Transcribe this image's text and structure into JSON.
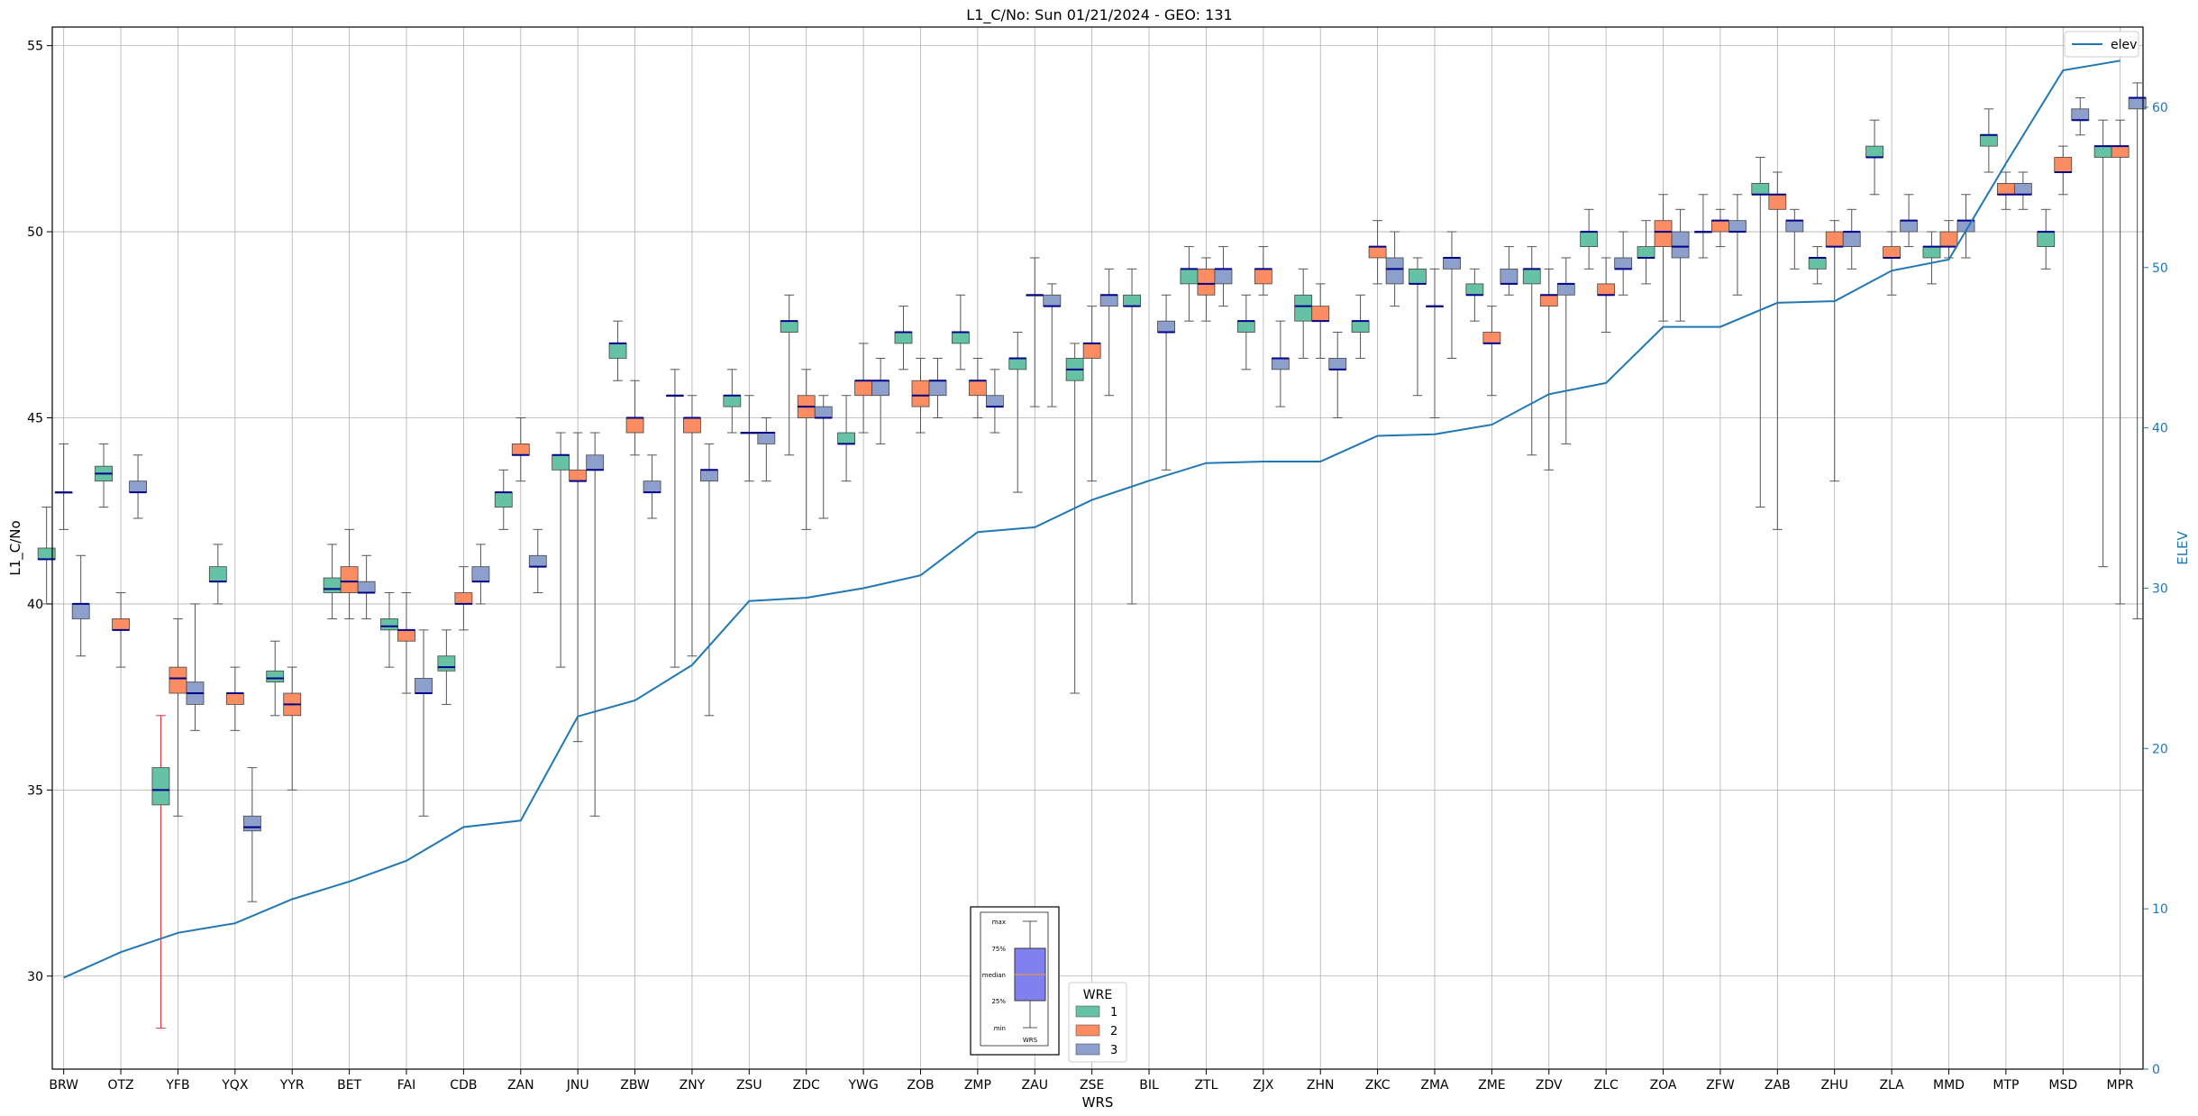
{
  "chart_data": {
    "type": "box",
    "title": "L1_C/No: Sun 01/21/2024 - GEO: 131",
    "xlabel": "WRS",
    "ylabel": "L1_C/No",
    "y2label": "ELEV",
    "ylim": [
      27.5,
      55.5
    ],
    "y2lim": [
      0,
      65
    ],
    "yticks": [
      30,
      35,
      40,
      45,
      50,
      55
    ],
    "y2ticks": [
      0,
      10,
      20,
      30,
      40,
      50,
      60
    ],
    "grid": true,
    "categories": [
      "BRW",
      "OTZ",
      "YFB",
      "YQX",
      "YYR",
      "BET",
      "FAI",
      "CDB",
      "ZAN",
      "JNU",
      "ZBW",
      "ZNY",
      "ZSU",
      "ZDC",
      "YWG",
      "ZOB",
      "ZMP",
      "ZAU",
      "ZSE",
      "BIL",
      "ZTL",
      "ZJX",
      "ZHN",
      "ZKC",
      "ZMA",
      "ZME",
      "ZDV",
      "ZLC",
      "ZOA",
      "ZFW",
      "ZAB",
      "ZHU",
      "ZLA",
      "MMD",
      "MTP",
      "MSD",
      "MPR"
    ],
    "series_colors": {
      "1": "#66c2a5",
      "2": "#fc8d62",
      "3": "#8da0cb"
    },
    "elev_color": "#1f77b4",
    "median_color": "#00008b",
    "series": [
      {
        "name": "1",
        "boxes": [
          [
            40.0,
            41.2,
            41.2,
            41.5,
            42.6
          ],
          [
            42.6,
            43.3,
            43.5,
            43.7,
            44.3
          ],
          [
            28.6,
            34.6,
            35.0,
            35.6,
            37.0
          ],
          [
            40.0,
            40.6,
            40.6,
            41.0,
            41.6
          ],
          [
            37.0,
            37.9,
            38.0,
            38.2,
            39.0
          ],
          [
            39.6,
            40.3,
            40.4,
            40.7,
            41.6
          ],
          [
            38.3,
            39.3,
            39.4,
            39.6,
            40.3
          ],
          [
            37.3,
            38.2,
            38.3,
            38.6,
            39.3
          ],
          [
            42.0,
            42.6,
            43.0,
            43.0,
            43.6
          ],
          [
            38.3,
            43.6,
            44.0,
            44.0,
            44.6
          ],
          [
            46.0,
            46.6,
            47.0,
            47.0,
            47.6
          ],
          [
            38.3,
            45.6,
            45.6,
            45.6,
            46.3
          ],
          [
            44.6,
            45.3,
            45.6,
            45.6,
            46.3
          ],
          [
            44.0,
            47.3,
            47.6,
            47.6,
            48.3
          ],
          [
            43.3,
            44.3,
            44.3,
            44.6,
            45.6
          ],
          [
            46.3,
            47.0,
            47.3,
            47.3,
            48.0
          ],
          [
            46.3,
            47.0,
            47.3,
            47.3,
            48.3
          ],
          [
            43.0,
            46.3,
            46.6,
            46.6,
            47.3
          ],
          [
            37.6,
            46.0,
            46.3,
            46.6,
            47.0
          ],
          [
            40.0,
            48.0,
            48.0,
            48.3,
            49.0
          ],
          [
            47.6,
            48.6,
            49.0,
            49.0,
            49.6
          ],
          [
            46.3,
            47.3,
            47.6,
            47.6,
            48.3
          ],
          [
            46.6,
            47.6,
            48.0,
            48.3,
            49.0
          ],
          [
            46.6,
            47.3,
            47.6,
            47.6,
            48.3
          ],
          [
            45.6,
            48.6,
            48.6,
            49.0,
            49.3
          ],
          [
            47.6,
            48.3,
            48.3,
            48.6,
            49.0
          ],
          [
            44.0,
            48.6,
            49.0,
            49.0,
            49.6
          ],
          [
            49.0,
            49.6,
            50.0,
            50.0,
            50.6
          ],
          [
            48.6,
            49.3,
            49.3,
            49.6,
            50.3
          ],
          [
            49.3,
            50.0,
            50.0,
            50.0,
            51.0
          ],
          [
            42.6,
            51.0,
            51.0,
            51.3,
            52.0
          ],
          [
            48.6,
            49.0,
            49.3,
            49.3,
            49.6
          ],
          [
            51.0,
            52.0,
            52.0,
            52.3,
            53.0
          ],
          [
            48.6,
            49.3,
            49.6,
            49.6,
            50.0
          ],
          [
            51.6,
            52.3,
            52.6,
            52.6,
            53.3
          ],
          [
            49.0,
            49.6,
            50.0,
            50.0,
            50.6
          ],
          [
            41.0,
            52.0,
            52.3,
            52.3,
            53.0
          ]
        ]
      },
      {
        "name": "2",
        "boxes": [
          [
            42.0,
            43.0,
            43.0,
            43.0,
            44.3
          ],
          [
            38.3,
            39.3,
            39.3,
            39.6,
            40.3
          ],
          [
            34.3,
            37.6,
            38.0,
            38.3,
            39.6
          ],
          [
            36.6,
            37.3,
            37.6,
            37.6,
            38.3
          ],
          [
            35.0,
            37.0,
            37.3,
            37.6,
            38.3
          ],
          [
            39.6,
            40.3,
            40.6,
            41.0,
            42.0
          ],
          [
            37.6,
            39.0,
            39.3,
            39.3,
            40.3
          ],
          [
            39.3,
            40.0,
            40.0,
            40.3,
            41.0
          ],
          [
            43.3,
            44.0,
            44.0,
            44.3,
            45.0
          ],
          [
            36.3,
            43.3,
            43.3,
            43.6,
            44.6
          ],
          [
            44.0,
            44.6,
            45.0,
            45.0,
            46.0
          ],
          [
            38.6,
            44.6,
            45.0,
            45.0,
            45.6
          ],
          [
            43.3,
            44.6,
            44.6,
            44.6,
            45.6
          ],
          [
            42.0,
            45.0,
            45.3,
            45.6,
            46.3
          ],
          [
            44.6,
            45.6,
            46.0,
            46.0,
            47.0
          ],
          [
            44.6,
            45.3,
            45.6,
            46.0,
            46.6
          ],
          [
            45.0,
            45.6,
            46.0,
            46.0,
            46.6
          ],
          [
            45.3,
            48.3,
            48.3,
            48.3,
            49.3
          ],
          [
            43.3,
            46.6,
            47.0,
            47.0,
            48.0
          ],
          [
            null,
            null,
            null,
            null,
            null
          ],
          [
            47.6,
            48.3,
            48.6,
            49.0,
            49.3
          ],
          [
            48.3,
            48.6,
            49.0,
            49.0,
            49.6
          ],
          [
            46.6,
            47.6,
            47.6,
            48.0,
            48.6
          ],
          [
            48.6,
            49.3,
            49.6,
            49.6,
            50.3
          ],
          [
            45.0,
            48.0,
            48.0,
            48.0,
            49.0
          ],
          [
            45.6,
            47.0,
            47.0,
            47.3,
            48.0
          ],
          [
            43.6,
            48.0,
            48.3,
            48.3,
            49.0
          ],
          [
            47.3,
            48.3,
            48.3,
            48.6,
            49.3
          ],
          [
            47.6,
            49.6,
            50.0,
            50.3,
            51.0
          ],
          [
            49.6,
            50.0,
            50.3,
            50.3,
            50.6
          ],
          [
            42.0,
            50.6,
            51.0,
            51.0,
            51.6
          ],
          [
            43.3,
            49.6,
            49.6,
            50.0,
            50.3
          ],
          [
            48.3,
            49.3,
            49.3,
            49.6,
            50.0
          ],
          [
            49.3,
            49.6,
            49.6,
            50.0,
            50.3
          ],
          [
            50.6,
            51.0,
            51.0,
            51.3,
            51.6
          ],
          [
            51.0,
            51.6,
            51.6,
            52.0,
            52.3
          ],
          [
            40.0,
            52.0,
            52.3,
            52.3,
            53.0
          ]
        ]
      },
      {
        "name": "3",
        "boxes": [
          [
            38.6,
            39.6,
            40.0,
            40.0,
            41.3
          ],
          [
            42.3,
            43.0,
            43.0,
            43.3,
            44.0
          ],
          [
            36.6,
            37.3,
            37.6,
            37.9,
            40.0
          ],
          [
            32.0,
            33.9,
            34.0,
            34.3,
            35.6
          ],
          [
            null,
            null,
            null,
            null,
            null
          ],
          [
            39.6,
            40.3,
            40.3,
            40.6,
            41.3
          ],
          [
            34.3,
            37.6,
            37.6,
            38.0,
            39.3
          ],
          [
            40.0,
            40.6,
            40.6,
            41.0,
            41.6
          ],
          [
            40.3,
            41.0,
            41.0,
            41.3,
            42.0
          ],
          [
            34.3,
            43.6,
            43.6,
            44.0,
            44.6
          ],
          [
            42.3,
            43.0,
            43.0,
            43.3,
            44.0
          ],
          [
            37.0,
            43.3,
            43.6,
            43.6,
            44.3
          ],
          [
            43.3,
            44.3,
            44.6,
            44.6,
            45.0
          ],
          [
            42.3,
            45.0,
            45.0,
            45.3,
            45.6
          ],
          [
            44.3,
            45.6,
            46.0,
            46.0,
            46.6
          ],
          [
            45.0,
            45.6,
            46.0,
            46.0,
            46.6
          ],
          [
            44.6,
            45.3,
            45.3,
            45.6,
            46.3
          ],
          [
            45.3,
            48.0,
            48.0,
            48.3,
            48.6
          ],
          [
            45.6,
            48.0,
            48.3,
            48.3,
            49.0
          ],
          [
            43.6,
            47.3,
            47.3,
            47.6,
            48.3
          ],
          [
            48.0,
            48.6,
            49.0,
            49.0,
            49.6
          ],
          [
            45.3,
            46.3,
            46.6,
            46.6,
            47.6
          ],
          [
            45.0,
            46.3,
            46.3,
            46.6,
            47.3
          ],
          [
            48.0,
            48.6,
            49.0,
            49.3,
            50.0
          ],
          [
            46.6,
            49.0,
            49.3,
            49.3,
            50.0
          ],
          [
            48.3,
            48.6,
            48.6,
            49.0,
            49.6
          ],
          [
            44.3,
            48.3,
            48.6,
            48.6,
            49.3
          ],
          [
            48.3,
            49.0,
            49.0,
            49.3,
            50.0
          ],
          [
            47.6,
            49.3,
            49.6,
            50.0,
            50.6
          ],
          [
            48.3,
            50.0,
            50.0,
            50.3,
            51.0
          ],
          [
            49.0,
            50.0,
            50.3,
            50.3,
            50.6
          ],
          [
            49.0,
            49.6,
            50.0,
            50.0,
            50.6
          ],
          [
            49.6,
            50.0,
            50.3,
            50.3,
            51.0
          ],
          [
            49.3,
            50.0,
            50.3,
            50.3,
            51.0
          ],
          [
            50.6,
            51.0,
            51.0,
            51.3,
            51.6
          ],
          [
            52.6,
            53.0,
            53.0,
            53.3,
            53.6
          ],
          [
            39.6,
            53.3,
            53.6,
            53.6,
            54.0
          ]
        ]
      }
    ],
    "elev": {
      "name": "elev",
      "values": [
        5.7,
        7.3,
        8.5,
        9.1,
        10.6,
        11.7,
        13.0,
        15.1,
        15.5,
        22.0,
        23.0,
        25.2,
        29.2,
        29.4,
        30.0,
        30.8,
        33.5,
        33.8,
        35.5,
        36.7,
        37.8,
        37.9,
        37.9,
        39.5,
        39.6,
        40.2,
        42.1,
        42.8,
        46.3,
        46.3,
        47.8,
        47.9,
        49.8,
        50.5,
        56.5,
        62.3,
        62.9
      ]
    },
    "legend_elev": {
      "label": "elev",
      "position": "top-right"
    },
    "legend_wre": {
      "title": "WRE",
      "entries": [
        "1",
        "2",
        "3"
      ]
    },
    "inset": {
      "labels": [
        "max",
        "75%",
        "median",
        "25%",
        "min"
      ],
      "xlabel": "WRS"
    }
  }
}
